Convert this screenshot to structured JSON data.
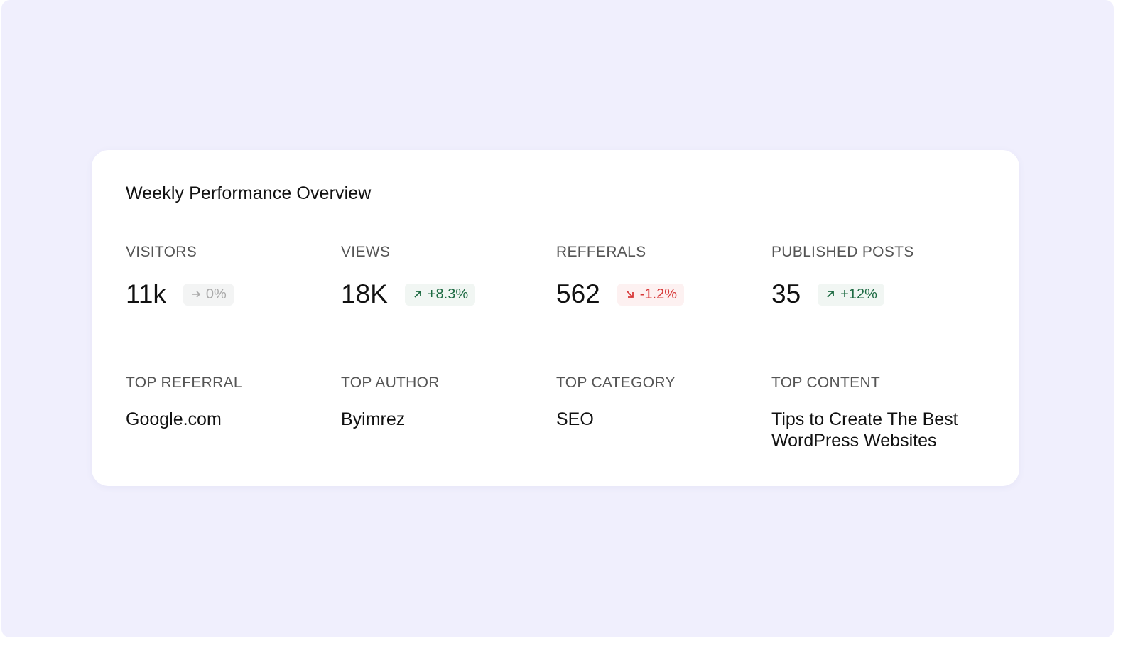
{
  "title": "Weekly Performance Overview",
  "colors": {
    "background": "#f0effd",
    "positive": "#1e6b43",
    "negative": "#d83a3a",
    "neutral": "#aaaaaa"
  },
  "metrics": [
    {
      "label": "VISITORS",
      "value": "11k",
      "change": "0%",
      "trend": "neutral",
      "icon": "arrow-right-icon"
    },
    {
      "label": "VIEWS",
      "value": "18K",
      "change": "+8.3%",
      "trend": "up",
      "icon": "arrow-up-right-icon"
    },
    {
      "label": "REFFERALS",
      "value": "562",
      "change": "-1.2%",
      "trend": "down",
      "icon": "arrow-down-right-icon"
    },
    {
      "label": "PUBLISHED POSTS",
      "value": "35",
      "change": "+12%",
      "trend": "up",
      "icon": "arrow-up-right-icon"
    }
  ],
  "tops": [
    {
      "label": "TOP REFERRAL",
      "value": "Google.com"
    },
    {
      "label": "TOP AUTHOR",
      "value": "Byimrez"
    },
    {
      "label": "TOP CATEGORY",
      "value": "SEO"
    },
    {
      "label": "TOP CONTENT",
      "value": "Tips to Create The Best WordPress Websites"
    }
  ]
}
